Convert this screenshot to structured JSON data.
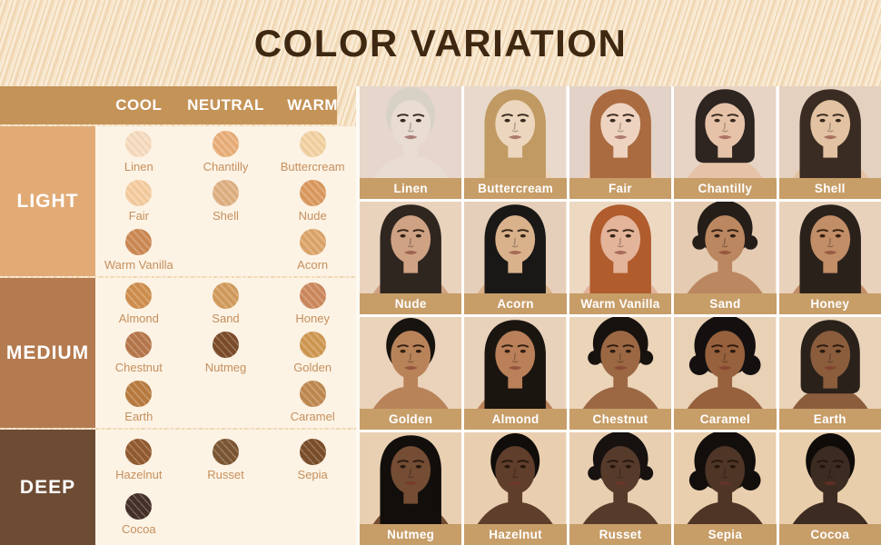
{
  "title": "COLOR VARIATION",
  "colors": {
    "title": "#3e2812",
    "header_bar": "#c49358",
    "photo_label_bar": "#c79d68",
    "panel_bg": "#fcf3e5",
    "swatch_label": "#c68f5c"
  },
  "table": {
    "columns": [
      "COOL",
      "NEUTRAL",
      "WARM"
    ],
    "sections": [
      {
        "label": "LIGHT",
        "sidebar_color": "#e2ab76",
        "rows": [
          [
            {
              "name": "Linen",
              "color": "#f7dcbf"
            },
            {
              "name": "Chantilly",
              "color": "#e9b07b"
            },
            {
              "name": "Buttercream",
              "color": "#f3d2a3"
            }
          ],
          [
            {
              "name": "Fair",
              "color": "#f5cda1"
            },
            {
              "name": "Shell",
              "color": "#dfb183"
            },
            {
              "name": "Nude",
              "color": "#db9b61"
            }
          ],
          [
            {
              "name": "Warm Vanilla",
              "color": "#cd8a55"
            },
            null,
            {
              "name": "Acorn",
              "color": "#dda66c"
            }
          ]
        ]
      },
      {
        "label": "MEDIUM",
        "sidebar_color": "#b47b50",
        "rows": [
          [
            {
              "name": "Almond",
              "color": "#cf9050"
            },
            {
              "name": "Sand",
              "color": "#d39d5f"
            },
            {
              "name": "Honey",
              "color": "#cd8a5f"
            }
          ],
          [
            {
              "name": "Chestnut",
              "color": "#b7784c"
            },
            {
              "name": "Nutmeg",
              "color": "#7d4e2c"
            },
            {
              "name": "Golden",
              "color": "#d09a55"
            }
          ],
          [
            {
              "name": "Earth",
              "color": "#b97c41"
            },
            null,
            {
              "name": "Caramel",
              "color": "#c08a52"
            }
          ]
        ]
      },
      {
        "label": "DEEP",
        "sidebar_color": "#6e4b33",
        "rows": [
          [
            {
              "name": "Hazelnut",
              "color": "#935c31"
            },
            {
              "name": "Russet",
              "color": "#7d5733"
            },
            {
              "name": "Sepia",
              "color": "#7b4f2b"
            }
          ],
          [
            {
              "name": "Cocoa",
              "color": "#463129"
            },
            null,
            null
          ]
        ]
      }
    ]
  },
  "photo_grid": {
    "rows": [
      [
        {
          "label": "Linen",
          "skin": "#e9dcd2",
          "hair": "#d8d2c6",
          "style": "cap",
          "bg": "#e6d6cb"
        },
        {
          "label": "Buttercream",
          "skin": "#ecd6bd",
          "hair": "#c09a62",
          "style": "long",
          "bg": "#e8d9cc"
        },
        {
          "label": "Fair",
          "skin": "#eed3c0",
          "hair": "#a96b3f",
          "style": "long",
          "bangs": true,
          "bg": "#e2d2c8"
        },
        {
          "label": "Chantilly",
          "skin": "#e6c3a8",
          "hair": "#2e2420",
          "style": "bob",
          "bangs": true,
          "bg": "#e7d4c5"
        },
        {
          "label": "Shell",
          "skin": "#e2c2a2",
          "hair": "#3a2c22",
          "style": "long",
          "bg": "#e5d1c0"
        }
      ],
      [
        {
          "label": "Nude",
          "skin": "#cfa284",
          "hair": "#2f2620",
          "style": "long",
          "bg": "#e9d3bd"
        },
        {
          "label": "Acorn",
          "skin": "#d9b28c",
          "hair": "#191817",
          "style": "long",
          "bg": "#e6cfba"
        },
        {
          "label": "Warm Vanilla",
          "skin": "#e3b39a",
          "hair": "#b05c2d",
          "style": "long",
          "bg": "#edd8c2"
        },
        {
          "label": "Sand",
          "skin": "#bb8760",
          "hair": "#241d18",
          "style": "curly",
          "bg": "#e4cbb2"
        },
        {
          "label": "Honey",
          "skin": "#c28e67",
          "hair": "#2b211b",
          "style": "long",
          "bg": "#e9d2bc"
        }
      ],
      [
        {
          "label": "Golden",
          "skin": "#b9835a",
          "hair": "#17130f",
          "style": "cap",
          "bg": "#ead3ba"
        },
        {
          "label": "Almond",
          "skin": "#b98059",
          "hair": "#1b1510",
          "style": "long",
          "bg": "#e9d2bb"
        },
        {
          "label": "Chestnut",
          "skin": "#9c6844",
          "hair": "#17120e",
          "style": "curly",
          "bg": "#ecd4b9"
        },
        {
          "label": "Caramel",
          "skin": "#96613c",
          "hair": "#141010",
          "style": "afro",
          "bg": "#e9d1b6"
        },
        {
          "label": "Earth",
          "skin": "#8b5d3d",
          "hair": "#2a211b",
          "style": "bob",
          "bg": "#ead3b8"
        }
      ],
      [
        {
          "label": "Nutmeg",
          "skin": "#744d34",
          "hair": "#120e0b",
          "style": "long",
          "bg": "#ead0b2"
        },
        {
          "label": "Hazelnut",
          "skin": "#5f3e2b",
          "hair": "#100d0a",
          "style": "cap",
          "bg": "#e9cfb0"
        },
        {
          "label": "Russet",
          "skin": "#563b2b",
          "hair": "#171210",
          "style": "curly",
          "bg": "#e9cfb1"
        },
        {
          "label": "Sepia",
          "skin": "#4e3526",
          "hair": "#120e0c",
          "style": "afro",
          "bg": "#eacfae"
        },
        {
          "label": "Cocoa",
          "skin": "#3c2b21",
          "hair": "#0e0b09",
          "style": "cap",
          "bg": "#e9ceab"
        }
      ]
    ]
  }
}
